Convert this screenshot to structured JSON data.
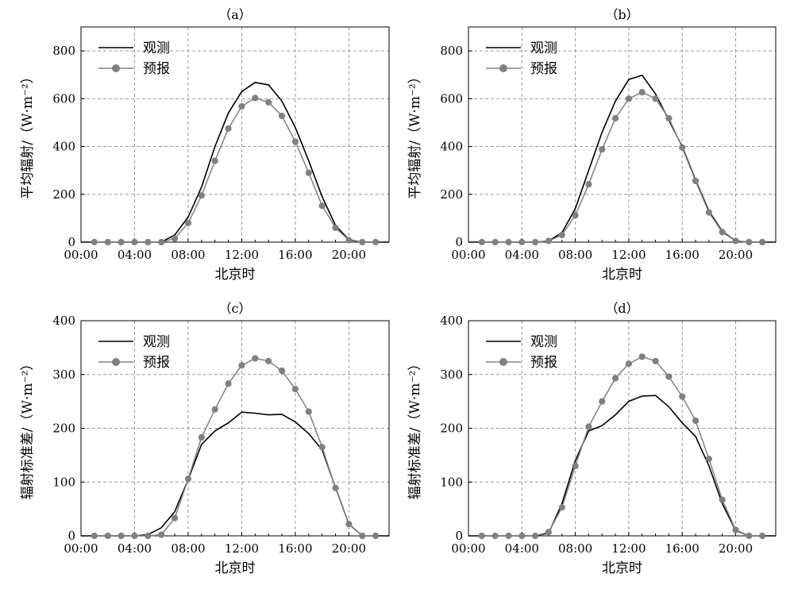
{
  "chart_data": [
    {
      "type": "line",
      "title": "（a）",
      "xlabel": "北京时",
      "ylabel": "平均辐射/（W·m⁻²）",
      "xlim": [
        0,
        23
      ],
      "ylim": [
        0,
        900
      ],
      "xticks": [
        "00:00",
        "04:00",
        "08:00",
        "12:00",
        "16:00",
        "20:00"
      ],
      "yticks": [
        0,
        200,
        400,
        600,
        800
      ],
      "grid": true,
      "legend_position": "top-left",
      "series": [
        {
          "name": "观测",
          "marker": "none",
          "color": "#000000",
          "x": [
            0,
            1,
            2,
            3,
            4,
            5,
            6,
            7,
            8,
            9,
            10,
            11,
            12,
            13,
            14,
            15,
            16,
            17,
            18,
            19,
            20,
            21,
            22,
            23
          ],
          "y": [
            0,
            0,
            0,
            0,
            0,
            0,
            0,
            30,
            105,
            230,
            400,
            540,
            630,
            668,
            658,
            590,
            480,
            340,
            190,
            70,
            10,
            0,
            0,
            0
          ]
        },
        {
          "name": "预报",
          "marker": "circle",
          "color": "#808080",
          "x": [
            1,
            2,
            3,
            4,
            5,
            6,
            7,
            8,
            9,
            10,
            11,
            12,
            13,
            14,
            15,
            16,
            17,
            18,
            19,
            20,
            21,
            22
          ],
          "y": [
            0,
            0,
            0,
            0,
            0,
            0,
            15,
            80,
            195,
            340,
            475,
            568,
            603,
            585,
            528,
            420,
            290,
            152,
            60,
            8,
            0,
            0
          ]
        }
      ]
    },
    {
      "type": "line",
      "title": "（b）",
      "xlabel": "北京时",
      "ylabel": "平均辐射/（W·m⁻²）",
      "xlim": [
        0,
        23
      ],
      "ylim": [
        0,
        900
      ],
      "xticks": [
        "00:00",
        "04:00",
        "08:00",
        "12:00",
        "16:00",
        "20:00"
      ],
      "yticks": [
        0,
        200,
        400,
        600,
        800
      ],
      "grid": true,
      "legend_position": "top-left",
      "series": [
        {
          "name": "观测",
          "marker": "none",
          "color": "#000000",
          "x": [
            0,
            1,
            2,
            3,
            4,
            5,
            6,
            7,
            8,
            9,
            10,
            11,
            12,
            13,
            14,
            15,
            16,
            17,
            18,
            19,
            20,
            21,
            22,
            23
          ],
          "y": [
            0,
            0,
            0,
            0,
            0,
            0,
            5,
            40,
            140,
            300,
            460,
            590,
            680,
            698,
            620,
            510,
            400,
            260,
            130,
            45,
            5,
            0,
            0,
            0
          ]
        },
        {
          "name": "预报",
          "marker": "circle",
          "color": "#808080",
          "x": [
            1,
            2,
            3,
            4,
            5,
            6,
            7,
            8,
            9,
            10,
            11,
            12,
            13,
            14,
            15,
            16,
            17,
            18,
            19,
            20,
            21,
            22
          ],
          "y": [
            0,
            0,
            0,
            0,
            0,
            5,
            30,
            112,
            242,
            388,
            518,
            600,
            627,
            600,
            518,
            396,
            256,
            124,
            42,
            5,
            0,
            0
          ]
        }
      ]
    },
    {
      "type": "line",
      "title": "（c）",
      "xlabel": "北京时",
      "ylabel": "辐射标准差/（W·m⁻²）",
      "xlim": [
        0,
        23
      ],
      "ylim": [
        0,
        400
      ],
      "xticks": [
        "00:00",
        "04:00",
        "08:00",
        "12:00",
        "16:00",
        "20:00"
      ],
      "yticks": [
        0,
        100,
        200,
        300,
        400
      ],
      "grid": true,
      "legend_position": "top-left",
      "series": [
        {
          "name": "观测",
          "marker": "none",
          "color": "#000000",
          "x": [
            0,
            1,
            2,
            3,
            4,
            5,
            6,
            7,
            8,
            9,
            10,
            11,
            12,
            13,
            14,
            15,
            16,
            17,
            18,
            19,
            20,
            21,
            22,
            23
          ],
          "y": [
            0,
            0,
            0,
            0,
            0,
            2,
            15,
            45,
            105,
            170,
            195,
            210,
            230,
            228,
            225,
            226,
            212,
            190,
            160,
            90,
            22,
            0,
            0,
            0
          ]
        },
        {
          "name": "预报",
          "marker": "circle",
          "color": "#808080",
          "x": [
            1,
            2,
            3,
            4,
            5,
            6,
            7,
            8,
            9,
            10,
            11,
            12,
            13,
            14,
            15,
            16,
            17,
            18,
            19,
            20,
            21,
            22
          ],
          "y": [
            0,
            0,
            0,
            0,
            0,
            2,
            33,
            106,
            183,
            235,
            283,
            317,
            330,
            325,
            307,
            273,
            231,
            165,
            89,
            22,
            0,
            0
          ]
        }
      ]
    },
    {
      "type": "line",
      "title": "（d）",
      "xlabel": "北京时",
      "ylabel": "辐射标准差/（W·m⁻²）",
      "xlim": [
        0,
        23
      ],
      "ylim": [
        0,
        400
      ],
      "xticks": [
        "00:00",
        "04:00",
        "08:00",
        "12:00",
        "16:00",
        "20:00"
      ],
      "yticks": [
        0,
        100,
        200,
        300,
        400
      ],
      "grid": true,
      "legend_position": "top-left",
      "series": [
        {
          "name": "观测",
          "marker": "none",
          "color": "#000000",
          "x": [
            0,
            1,
            2,
            3,
            4,
            5,
            6,
            7,
            8,
            9,
            10,
            11,
            12,
            13,
            14,
            15,
            16,
            17,
            18,
            19,
            20,
            21,
            22,
            23
          ],
          "y": [
            0,
            0,
            0,
            0,
            0,
            0,
            5,
            60,
            140,
            195,
            205,
            225,
            250,
            260,
            261,
            240,
            210,
            185,
            130,
            60,
            10,
            0,
            0,
            0
          ]
        },
        {
          "name": "预报",
          "marker": "circle",
          "color": "#808080",
          "x": [
            1,
            2,
            3,
            4,
            5,
            6,
            7,
            8,
            9,
            10,
            11,
            12,
            13,
            14,
            15,
            16,
            17,
            18,
            19,
            20,
            21,
            22
          ],
          "y": [
            0,
            0,
            0,
            0,
            0,
            7,
            53,
            130,
            203,
            250,
            293,
            320,
            333,
            325,
            296,
            259,
            214,
            143,
            67,
            11,
            0,
            0
          ]
        }
      ]
    }
  ]
}
